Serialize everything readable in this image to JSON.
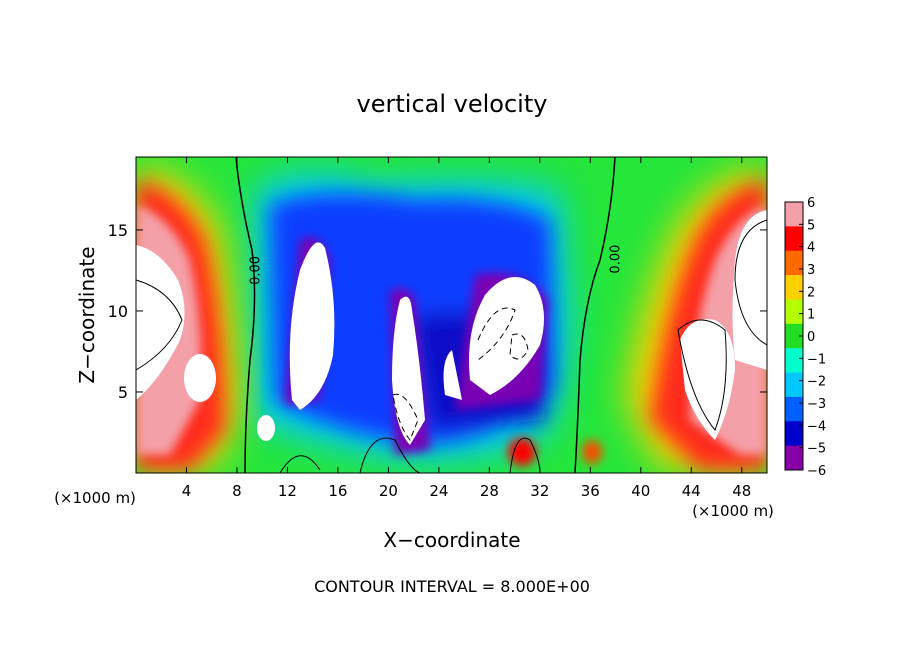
{
  "chart_data": {
    "type": "heatmap",
    "title": "vertical velocity",
    "xlabel": "X−coordinate",
    "ylabel": "Z−coordinate",
    "x_unit_label_left": "(×1000 m)",
    "x_unit_label_right": "(×1000 m)",
    "footer": "CONTOUR INTERVAL = 8.000E+00",
    "xlim": [
      0,
      50
    ],
    "ylim": [
      0,
      19.5
    ],
    "x_ticks": [
      4,
      8,
      12,
      16,
      20,
      24,
      28,
      32,
      36,
      40,
      44,
      48
    ],
    "y_ticks": [
      5,
      10,
      15
    ],
    "colorbar": {
      "ticks": [
        6,
        5,
        4,
        3,
        2,
        1,
        0,
        -1,
        -2,
        -3,
        -4,
        -5,
        -6
      ],
      "tick_labels": [
        "6",
        "5",
        "4",
        "3",
        "2",
        "1",
        "0",
        "−1",
        "−2",
        "−3",
        "−4",
        "−5",
        "−6"
      ],
      "range": [
        -6,
        6
      ],
      "colors": [
        "#f4a0a8",
        "#ff0000",
        "#ff6a00",
        "#ffd000",
        "#b4ff00",
        "#22dd22",
        "#00ffcc",
        "#00c8ff",
        "#0060ff",
        "#0000cc",
        "#8800aa"
      ]
    },
    "contour_labels": [
      {
        "text": "0.00",
        "x": 9.8,
        "y": 12.5
      },
      {
        "text": "0.00",
        "x": 38.3,
        "y": 13.2
      }
    ]
  }
}
